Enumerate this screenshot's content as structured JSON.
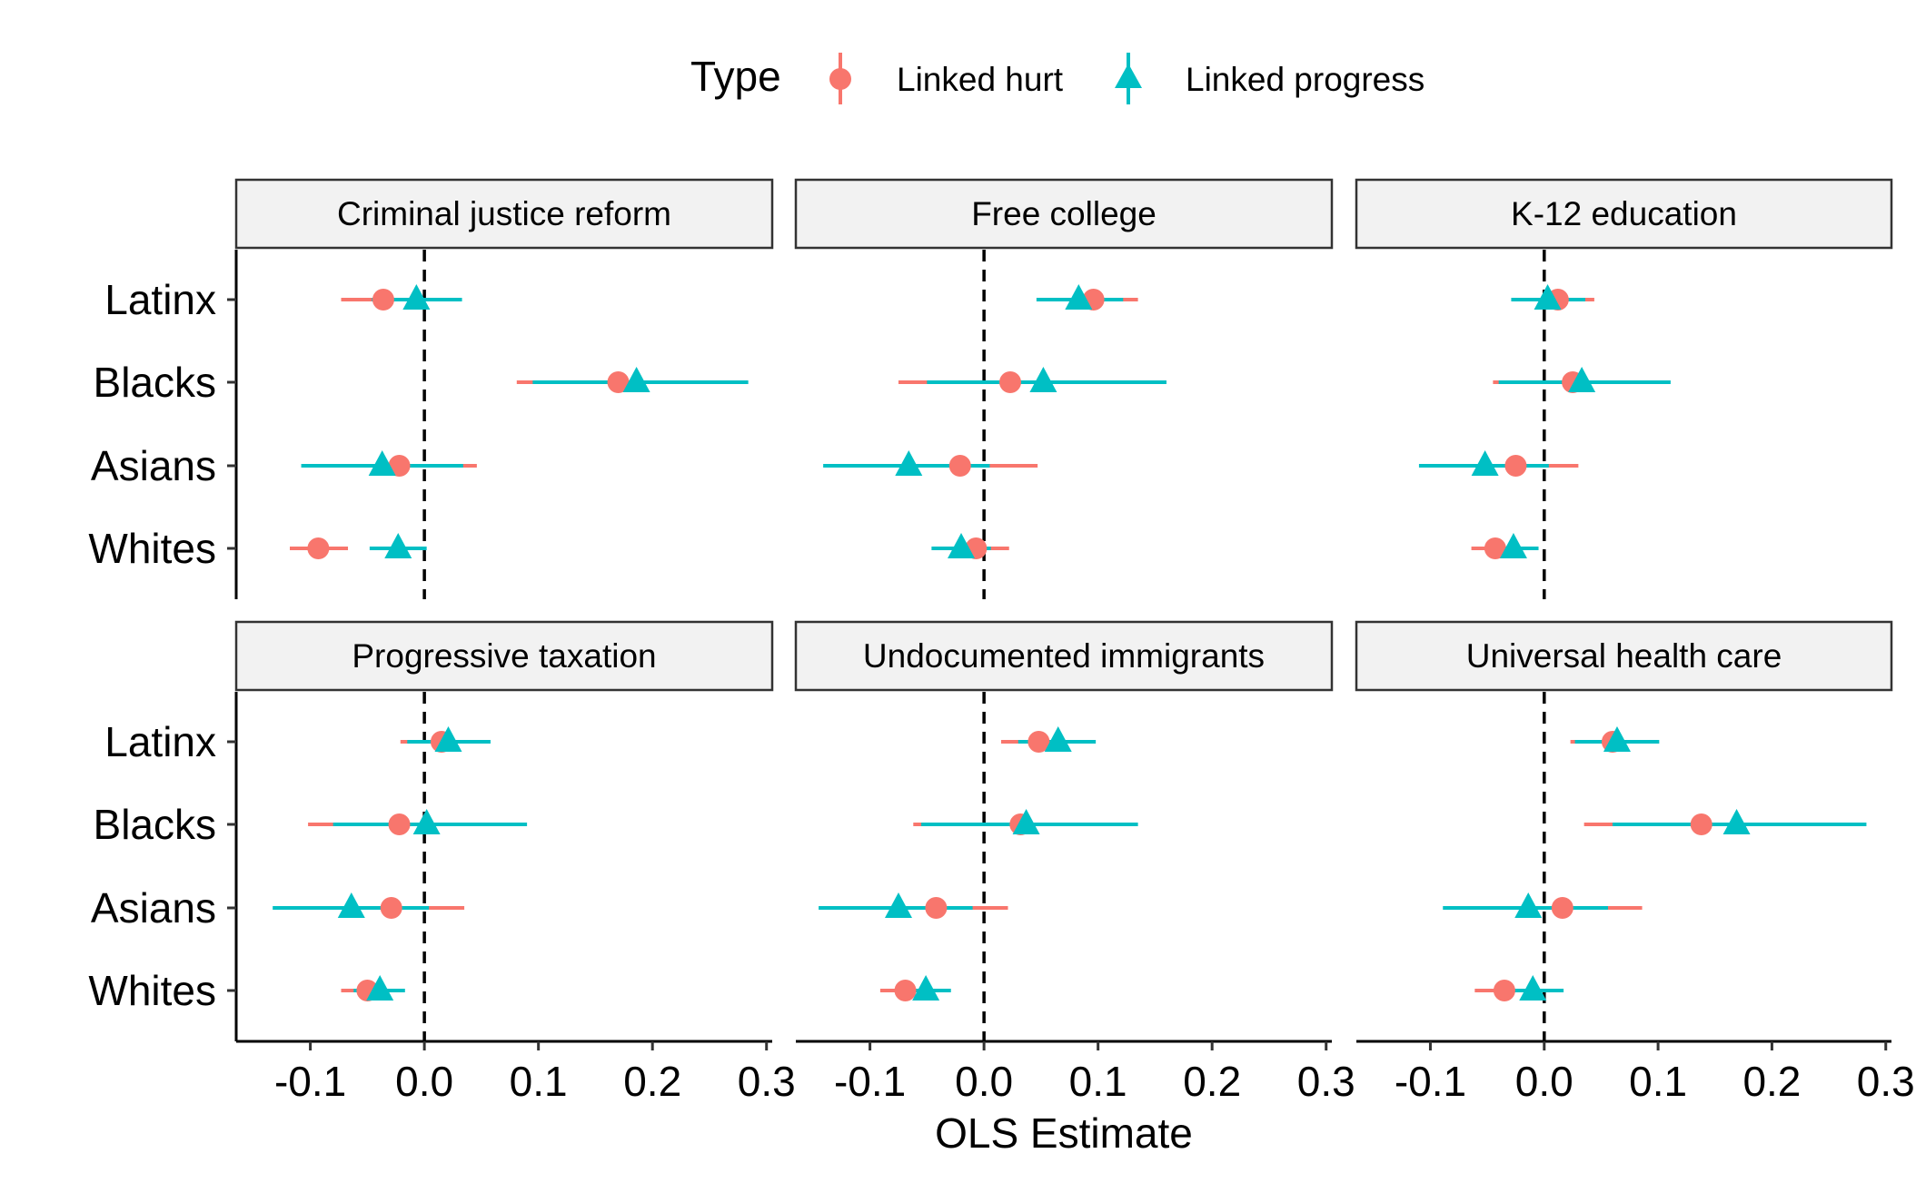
{
  "chart_data": {
    "type": "scatter",
    "subtype": "coefficient-plot-faceted",
    "xlabel": "OLS Estimate",
    "xlim": [
      -0.165,
      0.305
    ],
    "x_ticks": [
      -0.1,
      0.0,
      0.1,
      0.2,
      0.3
    ],
    "x_tick_labels": [
      "-0.1",
      "0.0",
      "0.1",
      "0.2",
      "0.3"
    ],
    "reference_line": 0,
    "categories": [
      "Latinx",
      "Blacks",
      "Asians",
      "Whites"
    ],
    "legend": {
      "title": "Type",
      "position": "top",
      "entries": [
        {
          "name": "Linked hurt",
          "color": "#F8766D",
          "marker": "circle"
        },
        {
          "name": "Linked progress",
          "color": "#00BFC4",
          "marker": "triangle"
        }
      ]
    },
    "panels": [
      {
        "title": "Criminal justice reform",
        "series": [
          {
            "name": "Linked hurt",
            "points": [
              {
                "group": "Latinx",
                "est": -0.036,
                "lo": -0.073,
                "hi": -0.002
              },
              {
                "group": "Blacks",
                "est": 0.17,
                "lo": 0.081,
                "hi": 0.259
              },
              {
                "group": "Asians",
                "est": -0.022,
                "lo": -0.089,
                "hi": 0.046
              },
              {
                "group": "Whites",
                "est": -0.093,
                "lo": -0.118,
                "hi": -0.067
              }
            ]
          },
          {
            "name": "Linked progress",
            "points": [
              {
                "group": "Latinx",
                "est": -0.007,
                "lo": -0.046,
                "hi": 0.033
              },
              {
                "group": "Blacks",
                "est": 0.186,
                "lo": 0.095,
                "hi": 0.284
              },
              {
                "group": "Asians",
                "est": -0.037,
                "lo": -0.108,
                "hi": 0.034
              },
              {
                "group": "Whites",
                "est": -0.023,
                "lo": -0.048,
                "hi": 0.002
              }
            ]
          }
        ]
      },
      {
        "title": "Free college",
        "series": [
          {
            "name": "Linked hurt",
            "points": [
              {
                "group": "Latinx",
                "est": 0.096,
                "lo": 0.059,
                "hi": 0.135
              },
              {
                "group": "Blacks",
                "est": 0.023,
                "lo": -0.075,
                "hi": 0.118
              },
              {
                "group": "Asians",
                "est": -0.021,
                "lo": -0.092,
                "hi": 0.047
              },
              {
                "group": "Whites",
                "est": -0.007,
                "lo": -0.034,
                "hi": 0.022
              }
            ]
          },
          {
            "name": "Linked progress",
            "points": [
              {
                "group": "Latinx",
                "est": 0.083,
                "lo": 0.046,
                "hi": 0.122
              },
              {
                "group": "Blacks",
                "est": 0.052,
                "lo": -0.05,
                "hi": 0.16
              },
              {
                "group": "Asians",
                "est": -0.066,
                "lo": -0.141,
                "hi": 0.005
              },
              {
                "group": "Whites",
                "est": -0.02,
                "lo": -0.046,
                "hi": 0.006
              }
            ]
          }
        ]
      },
      {
        "title": "K-12 education",
        "series": [
          {
            "name": "Linked hurt",
            "points": [
              {
                "group": "Latinx",
                "est": 0.012,
                "lo": -0.018,
                "hi": 0.044
              },
              {
                "group": "Blacks",
                "est": 0.025,
                "lo": -0.045,
                "hi": 0.096
              },
              {
                "group": "Asians",
                "est": -0.025,
                "lo": -0.079,
                "hi": 0.03
              },
              {
                "group": "Whites",
                "est": -0.043,
                "lo": -0.064,
                "hi": -0.021
              }
            ]
          },
          {
            "name": "Linked progress",
            "points": [
              {
                "group": "Latinx",
                "est": 0.003,
                "lo": -0.029,
                "hi": 0.036
              },
              {
                "group": "Blacks",
                "est": 0.033,
                "lo": -0.04,
                "hi": 0.111
              },
              {
                "group": "Asians",
                "est": -0.052,
                "lo": -0.11,
                "hi": 0.004
              },
              {
                "group": "Whites",
                "est": -0.027,
                "lo": -0.048,
                "hi": -0.005
              }
            ]
          }
        ]
      },
      {
        "title": "Progressive taxation",
        "series": [
          {
            "name": "Linked hurt",
            "points": [
              {
                "group": "Latinx",
                "est": 0.015,
                "lo": -0.021,
                "hi": 0.05
              },
              {
                "group": "Blacks",
                "est": -0.022,
                "lo": -0.102,
                "hi": 0.06
              },
              {
                "group": "Asians",
                "est": -0.029,
                "lo": -0.092,
                "hi": 0.035
              },
              {
                "group": "Whites",
                "est": -0.05,
                "lo": -0.073,
                "hi": -0.025
              }
            ]
          },
          {
            "name": "Linked progress",
            "points": [
              {
                "group": "Latinx",
                "est": 0.021,
                "lo": -0.015,
                "hi": 0.058
              },
              {
                "group": "Blacks",
                "est": 0.002,
                "lo": -0.08,
                "hi": 0.09
              },
              {
                "group": "Asians",
                "est": -0.064,
                "lo": -0.133,
                "hi": 0.004
              },
              {
                "group": "Whites",
                "est": -0.039,
                "lo": -0.062,
                "hi": -0.017
              }
            ]
          }
        ]
      },
      {
        "title": "Undocumented immigrants",
        "series": [
          {
            "name": "Linked hurt",
            "points": [
              {
                "group": "Latinx",
                "est": 0.048,
                "lo": 0.015,
                "hi": 0.083
              },
              {
                "group": "Blacks",
                "est": 0.032,
                "lo": -0.062,
                "hi": 0.124
              },
              {
                "group": "Asians",
                "est": -0.042,
                "lo": -0.108,
                "hi": 0.021
              },
              {
                "group": "Whites",
                "est": -0.069,
                "lo": -0.091,
                "hi": -0.047
              }
            ]
          },
          {
            "name": "Linked progress",
            "points": [
              {
                "group": "Latinx",
                "est": 0.065,
                "lo": 0.03,
                "hi": 0.098
              },
              {
                "group": "Blacks",
                "est": 0.037,
                "lo": -0.055,
                "hi": 0.135
              },
              {
                "group": "Asians",
                "est": -0.075,
                "lo": -0.145,
                "hi": -0.01
              },
              {
                "group": "Whites",
                "est": -0.051,
                "lo": -0.074,
                "hi": -0.029
              }
            ]
          }
        ]
      },
      {
        "title": "Universal health care",
        "series": [
          {
            "name": "Linked hurt",
            "points": [
              {
                "group": "Latinx",
                "est": 0.06,
                "lo": 0.023,
                "hi": 0.098
              },
              {
                "group": "Blacks",
                "est": 0.138,
                "lo": 0.035,
                "hi": 0.245
              },
              {
                "group": "Asians",
                "est": 0.016,
                "lo": -0.053,
                "hi": 0.086
              },
              {
                "group": "Whites",
                "est": -0.035,
                "lo": -0.061,
                "hi": -0.01
              }
            ]
          },
          {
            "name": "Linked progress",
            "points": [
              {
                "group": "Latinx",
                "est": 0.064,
                "lo": 0.027,
                "hi": 0.101
              },
              {
                "group": "Blacks",
                "est": 0.169,
                "lo": 0.06,
                "hi": 0.283
              },
              {
                "group": "Asians",
                "est": -0.014,
                "lo": -0.089,
                "hi": 0.056
              },
              {
                "group": "Whites",
                "est": -0.01,
                "lo": -0.036,
                "hi": 0.017
              }
            ]
          }
        ]
      }
    ]
  }
}
